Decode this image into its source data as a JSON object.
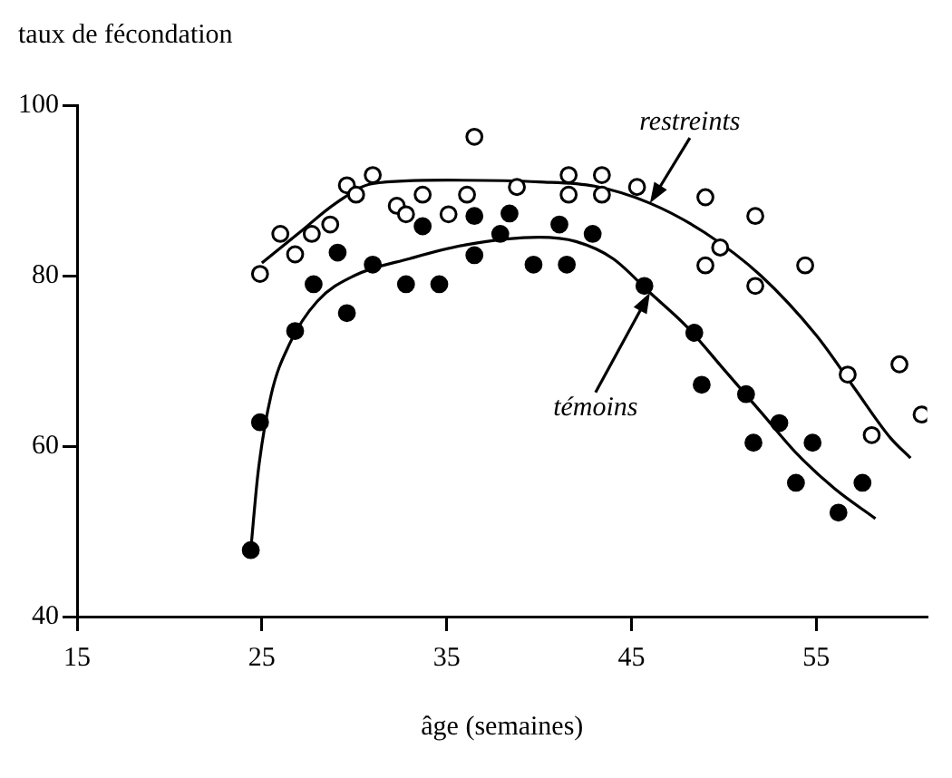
{
  "chart_data": {
    "type": "scatter",
    "xlabel": "âge (semaines)",
    "ylabel": "taux de fécondation",
    "xlim": [
      15,
      61
    ],
    "xticks": [
      15,
      25,
      35,
      45,
      55
    ],
    "ylim": [
      40,
      100
    ],
    "yticks": [
      40,
      60,
      80,
      100
    ],
    "annotations": [
      {
        "text": "restreints",
        "x": 46,
        "y": 88.5
      },
      {
        "text": "témoins",
        "x": 46,
        "y": 78
      }
    ],
    "series": [
      {
        "type": "scatter",
        "marker": "circle",
        "color": "#000000",
        "x": [
          24.9,
          26.0,
          26.8,
          27.7,
          28.7,
          29.6,
          30.1,
          31.0,
          32.3,
          32.8,
          33.7,
          35.1,
          36.1,
          36.5,
          38.8,
          41.6,
          41.6,
          43.4,
          43.4,
          45.3,
          49.0,
          51.7,
          49.8,
          49.0,
          51.7,
          54.4,
          56.7,
          59.5,
          58.0,
          60.7
        ],
        "values": [
          80.2,
          84.9,
          82.5,
          84.9,
          86.0,
          90.6,
          89.5,
          91.8,
          88.2,
          87.2,
          89.5,
          87.2,
          89.5,
          96.3,
          90.4,
          91.8,
          89.5,
          91.8,
          89.5,
          90.4,
          89.2,
          87.0,
          83.3,
          81.2,
          78.8,
          81.2,
          68.4,
          69.6,
          61.3,
          63.7
        ]
      },
      {
        "type": "scatter",
        "marker": "circle",
        "color": "#000000",
        "x": [
          24.4,
          24.9,
          26.8,
          27.8,
          29.1,
          29.6,
          31.0,
          32.8,
          33.7,
          34.6,
          36.5,
          36.5,
          38.4,
          37.9,
          39.7,
          41.1,
          41.5,
          42.9,
          45.7,
          48.4,
          48.8,
          51.2,
          53.0,
          51.6,
          54.8,
          53.9,
          57.5,
          56.2
        ],
        "values": [
          47.8,
          62.8,
          73.5,
          79.0,
          82.7,
          75.6,
          81.3,
          79.0,
          85.8,
          79.0,
          87.0,
          82.4,
          87.3,
          84.9,
          81.3,
          86.0,
          81.3,
          84.9,
          78.8,
          73.3,
          67.2,
          66.1,
          62.7,
          60.4,
          60.4,
          55.7,
          55.7,
          52.2
        ]
      },
      {
        "type": "line",
        "color": "#000000",
        "x": [
          25,
          27,
          29,
          31,
          35,
          40,
          43,
          46,
          49,
          52,
          55,
          57,
          59,
          60.1
        ],
        "values": [
          81.5,
          85,
          88.5,
          90.8,
          91.2,
          91,
          90.5,
          88.5,
          85,
          80,
          73,
          67,
          61,
          58.6
        ]
      },
      {
        "type": "line",
        "color": "#000000",
        "x": [
          24.4,
          24.8,
          25.5,
          26.5,
          28,
          30,
          33,
          36,
          40,
          42,
          44,
          46,
          48,
          50,
          52,
          54,
          56,
          58.2
        ],
        "values": [
          47.8,
          57,
          66,
          72,
          77,
          80,
          82,
          83.6,
          84.5,
          84,
          82,
          78,
          74,
          69,
          64,
          59,
          55,
          51.5
        ]
      }
    ]
  }
}
